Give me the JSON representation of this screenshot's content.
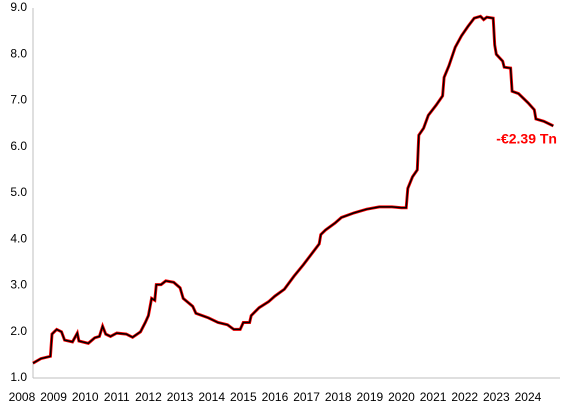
{
  "chart_data": {
    "type": "line",
    "annotation": "-€2.39 Tn",
    "annotation_color": "#ff0000",
    "x": [
      2008.35,
      2008.6,
      2008.9,
      2008.95,
      2009.1,
      2009.25,
      2009.35,
      2009.6,
      2009.75,
      2009.8,
      2010.1,
      2010.3,
      2010.45,
      2010.55,
      2010.65,
      2010.8,
      2011.0,
      2011.3,
      2011.5,
      2011.75,
      2011.9,
      2012.0,
      2012.1,
      2012.2,
      2012.25,
      2012.4,
      2012.55,
      2012.8,
      2013.0,
      2013.1,
      2013.4,
      2013.5,
      2013.9,
      2014.2,
      2014.5,
      2014.7,
      2014.9,
      2015.0,
      2015.2,
      2015.25,
      2015.5,
      2015.8,
      2016.0,
      2016.3,
      2016.6,
      2016.9,
      2017.2,
      2017.4,
      2017.45,
      2017.6,
      2017.9,
      2018.1,
      2018.5,
      2018.9,
      2019.3,
      2019.7,
      2020.0,
      2020.15,
      2020.2,
      2020.35,
      2020.5,
      2020.55,
      2020.7,
      2020.85,
      2021.1,
      2021.3,
      2021.35,
      2021.5,
      2021.7,
      2021.9,
      2022.1,
      2022.3,
      2022.5,
      2022.6,
      2022.7,
      2022.9,
      2022.95,
      2023.0,
      2023.2,
      2023.25,
      2023.45,
      2023.5,
      2023.7,
      2024.0,
      2024.2,
      2024.25,
      2024.5,
      2024.8
    ],
    "series": [
      {
        "color": "#000000",
        "edge_color": "#ff0000",
        "values": [
          1.32,
          1.42,
          1.47,
          1.95,
          2.05,
          2.0,
          1.82,
          1.78,
          1.97,
          1.8,
          1.75,
          1.87,
          1.9,
          2.12,
          1.95,
          1.9,
          1.97,
          1.95,
          1.88,
          2.0,
          2.2,
          2.35,
          2.72,
          2.68,
          3.02,
          3.02,
          3.1,
          3.07,
          2.95,
          2.72,
          2.55,
          2.4,
          2.3,
          2.2,
          2.15,
          2.05,
          2.05,
          2.2,
          2.2,
          2.35,
          2.52,
          2.65,
          2.77,
          2.92,
          3.2,
          3.45,
          3.72,
          3.9,
          4.1,
          4.2,
          4.35,
          4.47,
          4.57,
          4.65,
          4.7,
          4.7,
          4.68,
          4.68,
          5.1,
          5.35,
          5.5,
          6.25,
          6.4,
          6.68,
          6.9,
          7.1,
          7.5,
          7.75,
          8.15,
          8.4,
          8.6,
          8.78,
          8.82,
          8.75,
          8.8,
          8.78,
          8.2,
          8.0,
          7.85,
          7.72,
          7.7,
          7.2,
          7.15,
          6.95,
          6.8,
          6.6,
          6.55,
          6.45
        ]
      }
    ],
    "xlim": [
      2008.35,
      2024.95
    ],
    "xticks": [
      2008,
      2009,
      2010,
      2011,
      2012,
      2013,
      2014,
      2015,
      2016,
      2017,
      2018,
      2019,
      2020,
      2021,
      2022,
      2023,
      2024
    ],
    "ylim": [
      1.0,
      9.0
    ],
    "yticks": [
      {
        "value": 1,
        "label": "1.0"
      },
      {
        "value": 2,
        "label": "2.0"
      },
      {
        "value": 3,
        "label": "3.0"
      },
      {
        "value": 4,
        "label": "4.0"
      },
      {
        "value": 5,
        "label": "5.0"
      },
      {
        "value": 6,
        "label": "6.0"
      },
      {
        "value": 7,
        "label": "7.0"
      },
      {
        "value": 8,
        "label": "8.0"
      },
      {
        "value": 9,
        "label": "9.0"
      }
    ]
  }
}
